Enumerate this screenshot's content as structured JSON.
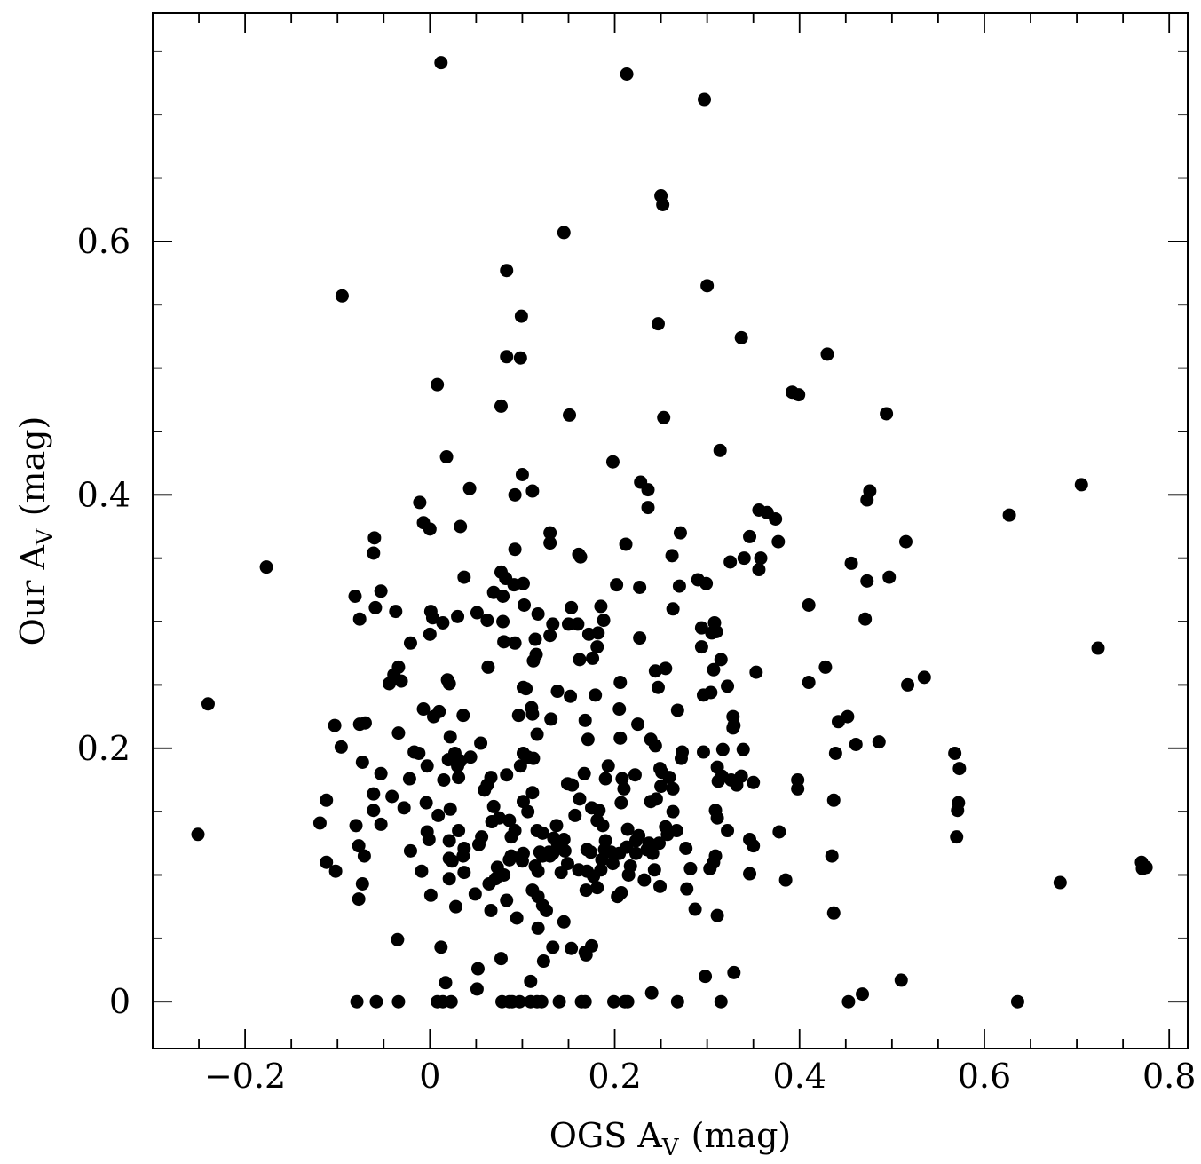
{
  "chart_data": {
    "type": "scatter",
    "xlabel": "OGS A",
    "xlabel_sub": "V",
    "xlabel_unit": "(mag)",
    "ylabel": "Our A",
    "ylabel_sub": "V",
    "ylabel_unit": "(mag)",
    "xlim": [
      -0.3,
      0.82
    ],
    "ylim": [
      -0.037,
      0.78
    ],
    "grid": false,
    "colors": {
      "marker": "#000000",
      "frame": "#000000"
    },
    "x_major_ticks": [
      -0.2,
      0,
      0.2,
      0.4,
      0.6,
      0.8
    ],
    "x_tick_labels": [
      "−0.2",
      "0",
      "0.2",
      "0.4",
      "0.6",
      "0.8"
    ],
    "y_major_ticks": [
      0,
      0.2,
      0.4,
      0.6
    ],
    "y_tick_labels": [
      "0",
      "0.2",
      "0.4",
      "0.6"
    ],
    "x_minor_step": 0.05,
    "y_minor_step": 0.05,
    "points": [
      [
        0.012,
        0.741
      ],
      [
        0.213,
        0.732
      ],
      [
        0.297,
        0.712
      ],
      [
        0.25,
        0.636
      ],
      [
        0.252,
        0.629
      ],
      [
        0.145,
        0.607
      ],
      [
        0.083,
        0.577
      ],
      [
        0.3,
        0.565
      ],
      [
        -0.095,
        0.557
      ],
      [
        0.099,
        0.541
      ],
      [
        0.247,
        0.535
      ],
      [
        0.337,
        0.524
      ],
      [
        0.083,
        0.509
      ],
      [
        0.098,
        0.508
      ],
      [
        0.43,
        0.511
      ],
      [
        0.008,
        0.487
      ],
      [
        0.392,
        0.481
      ],
      [
        0.399,
        0.479
      ],
      [
        0.077,
        0.47
      ],
      [
        0.151,
        0.463
      ],
      [
        0.253,
        0.461
      ],
      [
        0.494,
        0.464
      ],
      [
        0.018,
        0.43
      ],
      [
        0.314,
        0.435
      ],
      [
        0.198,
        0.426
      ],
      [
        0.1,
        0.416
      ],
      [
        0.228,
        0.41
      ],
      [
        0.236,
        0.404
      ],
      [
        0.043,
        0.405
      ],
      [
        0.111,
        0.403
      ],
      [
        0.092,
        0.4
      ],
      [
        0.476,
        0.403
      ],
      [
        0.473,
        0.396
      ],
      [
        0.705,
        0.408
      ],
      [
        -0.011,
        0.394
      ],
      [
        0.236,
        0.39
      ],
      [
        0.356,
        0.388
      ],
      [
        0.365,
        0.386
      ],
      [
        0.374,
        0.381
      ],
      [
        0.627,
        0.384
      ],
      [
        -0.007,
        0.378
      ],
      [
        0.0,
        0.373
      ],
      [
        0.033,
        0.375
      ],
      [
        0.13,
        0.37
      ],
      [
        0.271,
        0.37
      ],
      [
        -0.06,
        0.366
      ],
      [
        0.13,
        0.362
      ],
      [
        0.212,
        0.361
      ],
      [
        0.346,
        0.367
      ],
      [
        0.377,
        0.363
      ],
      [
        0.515,
        0.363
      ],
      [
        -0.061,
        0.354
      ],
      [
        0.092,
        0.357
      ],
      [
        0.161,
        0.353
      ],
      [
        0.163,
        0.351
      ],
      [
        0.262,
        0.352
      ],
      [
        0.34,
        0.35
      ],
      [
        0.325,
        0.347
      ],
      [
        0.358,
        0.35
      ],
      [
        0.356,
        0.341
      ],
      [
        0.456,
        0.346
      ],
      [
        -0.177,
        0.343
      ],
      [
        0.037,
        0.335
      ],
      [
        0.077,
        0.339
      ],
      [
        0.082,
        0.334
      ],
      [
        0.091,
        0.329
      ],
      [
        0.101,
        0.33
      ],
      [
        0.29,
        0.333
      ],
      [
        0.299,
        0.33
      ],
      [
        0.202,
        0.329
      ],
      [
        0.227,
        0.327
      ],
      [
        0.27,
        0.328
      ],
      [
        0.473,
        0.332
      ],
      [
        0.497,
        0.335
      ],
      [
        -0.081,
        0.32
      ],
      [
        -0.053,
        0.324
      ],
      [
        0.069,
        0.323
      ],
      [
        0.079,
        0.32
      ],
      [
        0.102,
        0.313
      ],
      [
        -0.059,
        0.311
      ],
      [
        -0.037,
        0.308
      ],
      [
        0.001,
        0.308
      ],
      [
        0.153,
        0.311
      ],
      [
        0.185,
        0.312
      ],
      [
        0.263,
        0.31
      ],
      [
        0.41,
        0.313
      ],
      [
        -0.076,
        0.302
      ],
      [
        0.003,
        0.303
      ],
      [
        0.014,
        0.299
      ],
      [
        0.03,
        0.304
      ],
      [
        0.051,
        0.307
      ],
      [
        0.079,
        0.3
      ],
      [
        0.062,
        0.301
      ],
      [
        0.117,
        0.306
      ],
      [
        0.133,
        0.298
      ],
      [
        0.15,
        0.298
      ],
      [
        0.16,
        0.298
      ],
      [
        0.188,
        0.301
      ],
      [
        0.308,
        0.299
      ],
      [
        0.471,
        0.302
      ],
      [
        0.0,
        0.29
      ],
      [
        -0.021,
        0.283
      ],
      [
        0.08,
        0.284
      ],
      [
        0.092,
        0.283
      ],
      [
        0.114,
        0.286
      ],
      [
        0.13,
        0.289
      ],
      [
        0.172,
        0.29
      ],
      [
        0.182,
        0.291
      ],
      [
        0.227,
        0.287
      ],
      [
        0.294,
        0.295
      ],
      [
        0.305,
        0.291
      ],
      [
        0.31,
        0.292
      ],
      [
        0.181,
        0.28
      ],
      [
        0.294,
        0.28
      ],
      [
        0.723,
        0.279
      ],
      [
        -0.034,
        0.264
      ],
      [
        0.063,
        0.264
      ],
      [
        0.112,
        0.269
      ],
      [
        0.115,
        0.274
      ],
      [
        0.162,
        0.27
      ],
      [
        0.176,
        0.271
      ],
      [
        0.315,
        0.27
      ],
      [
        0.244,
        0.261
      ],
      [
        0.255,
        0.263
      ],
      [
        0.307,
        0.262
      ],
      [
        0.353,
        0.26
      ],
      [
        0.428,
        0.264
      ],
      [
        -0.039,
        0.258
      ],
      [
        -0.031,
        0.253
      ],
      [
        -0.044,
        0.251
      ],
      [
        0.019,
        0.254
      ],
      [
        0.021,
        0.251
      ],
      [
        0.101,
        0.248
      ],
      [
        0.104,
        0.247
      ],
      [
        0.138,
        0.245
      ],
      [
        0.152,
        0.241
      ],
      [
        0.179,
        0.242
      ],
      [
        0.206,
        0.252
      ],
      [
        0.247,
        0.248
      ],
      [
        0.322,
        0.249
      ],
      [
        0.41,
        0.252
      ],
      [
        0.517,
        0.25
      ],
      [
        0.535,
        0.256
      ],
      [
        0.11,
        0.232
      ],
      [
        -0.24,
        0.235
      ],
      [
        -0.007,
        0.231
      ],
      [
        0.004,
        0.225
      ],
      [
        0.01,
        0.229
      ],
      [
        0.036,
        0.226
      ],
      [
        0.096,
        0.226
      ],
      [
        0.111,
        0.227
      ],
      [
        0.131,
        0.223
      ],
      [
        0.168,
        0.222
      ],
      [
        0.205,
        0.231
      ],
      [
        0.225,
        0.219
      ],
      [
        0.268,
        0.23
      ],
      [
        0.296,
        0.242
      ],
      [
        0.304,
        0.244
      ],
      [
        0.328,
        0.225
      ],
      [
        0.329,
        0.218
      ],
      [
        0.442,
        0.221
      ],
      [
        0.452,
        0.225
      ],
      [
        -0.103,
        0.218
      ],
      [
        -0.076,
        0.219
      ],
      [
        -0.07,
        0.22
      ],
      [
        -0.034,
        0.212
      ],
      [
        0.022,
        0.209
      ],
      [
        0.055,
        0.204
      ],
      [
        0.116,
        0.211
      ],
      [
        0.171,
        0.207
      ],
      [
        0.206,
        0.208
      ],
      [
        0.239,
        0.207
      ],
      [
        0.244,
        0.202
      ],
      [
        0.328,
        0.216
      ],
      [
        0.461,
        0.203
      ],
      [
        0.486,
        0.205
      ],
      [
        -0.096,
        0.201
      ],
      [
        -0.017,
        0.197
      ],
      [
        -0.012,
        0.196
      ],
      [
        0.027,
        0.196
      ],
      [
        0.033,
        0.19
      ],
      [
        0.044,
        0.193
      ],
      [
        0.101,
        0.196
      ],
      [
        0.106,
        0.193
      ],
      [
        0.112,
        0.192
      ],
      [
        0.273,
        0.197
      ],
      [
        0.296,
        0.197
      ],
      [
        0.317,
        0.199
      ],
      [
        0.339,
        0.199
      ],
      [
        0.439,
        0.196
      ],
      [
        0.568,
        0.196
      ],
      [
        -0.073,
        0.189
      ],
      [
        -0.003,
        0.186
      ],
      [
        0.02,
        0.191
      ],
      [
        0.03,
        0.186
      ],
      [
        0.098,
        0.186
      ],
      [
        0.193,
        0.186
      ],
      [
        0.249,
        0.184
      ],
      [
        0.272,
        0.192
      ],
      [
        0.311,
        0.185
      ],
      [
        0.573,
        0.184
      ],
      [
        -0.053,
        0.18
      ],
      [
        -0.022,
        0.176
      ],
      [
        0.015,
        0.175
      ],
      [
        0.031,
        0.177
      ],
      [
        0.083,
        0.179
      ],
      [
        0.149,
        0.172
      ],
      [
        0.167,
        0.18
      ],
      [
        0.19,
        0.176
      ],
      [
        0.208,
        0.176
      ],
      [
        0.222,
        0.179
      ],
      [
        0.251,
        0.181
      ],
      [
        0.259,
        0.177
      ],
      [
        0.316,
        0.178
      ],
      [
        0.326,
        0.175
      ],
      [
        0.337,
        0.178
      ],
      [
        0.35,
        0.173
      ],
      [
        0.398,
        0.175
      ],
      [
        -0.112,
        0.159
      ],
      [
        -0.061,
        0.164
      ],
      [
        -0.041,
        0.162
      ],
      [
        0.062,
        0.171
      ],
      [
        0.066,
        0.177
      ],
      [
        0.111,
        0.165
      ],
      [
        0.154,
        0.171
      ],
      [
        0.21,
        0.168
      ],
      [
        0.25,
        0.17
      ],
      [
        0.263,
        0.168
      ],
      [
        0.312,
        0.174
      ],
      [
        0.332,
        0.171
      ],
      [
        0.398,
        0.168
      ],
      [
        -0.061,
        0.151
      ],
      [
        -0.028,
        0.153
      ],
      [
        -0.004,
        0.157
      ],
      [
        0.022,
        0.152
      ],
      [
        0.059,
        0.167
      ],
      [
        0.069,
        0.154
      ],
      [
        0.075,
        0.145
      ],
      [
        0.101,
        0.158
      ],
      [
        0.106,
        0.15
      ],
      [
        0.162,
        0.16
      ],
      [
        0.175,
        0.153
      ],
      [
        0.183,
        0.151
      ],
      [
        0.207,
        0.157
      ],
      [
        0.239,
        0.158
      ],
      [
        0.245,
        0.16
      ],
      [
        0.263,
        0.15
      ],
      [
        0.309,
        0.151
      ],
      [
        0.437,
        0.159
      ],
      [
        0.572,
        0.157
      ],
      [
        0.571,
        0.151
      ],
      [
        -0.119,
        0.141
      ],
      [
        -0.08,
        0.139
      ],
      [
        -0.053,
        0.14
      ],
      [
        0.009,
        0.147
      ],
      [
        0.031,
        0.135
      ],
      [
        0.067,
        0.142
      ],
      [
        0.086,
        0.143
      ],
      [
        0.092,
        0.135
      ],
      [
        0.116,
        0.135
      ],
      [
        0.137,
        0.139
      ],
      [
        0.157,
        0.147
      ],
      [
        0.181,
        0.143
      ],
      [
        0.187,
        0.139
      ],
      [
        0.214,
        0.136
      ],
      [
        0.255,
        0.138
      ],
      [
        0.267,
        0.135
      ],
      [
        0.311,
        0.145
      ],
      [
        0.322,
        0.135
      ],
      [
        0.378,
        0.134
      ],
      [
        -0.251,
        0.132
      ],
      [
        -0.003,
        0.134
      ],
      [
        0.056,
        0.13
      ],
      [
        0.088,
        0.13
      ],
      [
        0.122,
        0.133
      ],
      [
        0.134,
        0.129
      ],
      [
        0.145,
        0.128
      ],
      [
        0.19,
        0.127
      ],
      [
        0.226,
        0.131
      ],
      [
        0.257,
        0.132
      ],
      [
        0.346,
        0.128
      ],
      [
        0.57,
        0.13
      ],
      [
        -0.077,
        0.123
      ],
      [
        -0.001,
        0.128
      ],
      [
        0.021,
        0.127
      ],
      [
        0.037,
        0.121
      ],
      [
        0.053,
        0.124
      ],
      [
        0.119,
        0.118
      ],
      [
        0.133,
        0.117
      ],
      [
        0.138,
        0.125
      ],
      [
        0.17,
        0.12
      ],
      [
        0.189,
        0.12
      ],
      [
        0.196,
        0.118
      ],
      [
        0.213,
        0.122
      ],
      [
        0.223,
        0.127
      ],
      [
        0.237,
        0.125
      ],
      [
        0.248,
        0.125
      ],
      [
        0.277,
        0.121
      ],
      [
        0.309,
        0.115
      ],
      [
        0.35,
        0.123
      ],
      [
        -0.071,
        0.115
      ],
      [
        -0.021,
        0.119
      ],
      [
        0.021,
        0.113
      ],
      [
        0.036,
        0.115
      ],
      [
        0.088,
        0.115
      ],
      [
        0.101,
        0.117
      ],
      [
        0.122,
        0.115
      ],
      [
        0.129,
        0.118
      ],
      [
        0.146,
        0.119
      ],
      [
        0.174,
        0.118
      ],
      [
        0.186,
        0.112
      ],
      [
        0.205,
        0.117
      ],
      [
        0.223,
        0.117
      ],
      [
        0.235,
        0.12
      ],
      [
        0.241,
        0.117
      ],
      [
        0.435,
        0.115
      ],
      [
        -0.112,
        0.11
      ],
      [
        0.024,
        0.111
      ],
      [
        0.037,
        0.102
      ],
      [
        0.073,
        0.106
      ],
      [
        0.086,
        0.112
      ],
      [
        0.1,
        0.111
      ],
      [
        0.114,
        0.107
      ],
      [
        0.13,
        0.115
      ],
      [
        0.149,
        0.109
      ],
      [
        0.161,
        0.104
      ],
      [
        0.185,
        0.104
      ],
      [
        0.198,
        0.109
      ],
      [
        0.217,
        0.107
      ],
      [
        0.282,
        0.105
      ],
      [
        0.303,
        0.105
      ],
      [
        0.307,
        0.11
      ],
      [
        0.346,
        0.101
      ],
      [
        0.77,
        0.11
      ],
      [
        0.771,
        0.105
      ],
      [
        0.775,
        0.106
      ],
      [
        -0.102,
        0.103
      ],
      [
        -0.009,
        0.103
      ],
      [
        0.021,
        0.097
      ],
      [
        0.071,
        0.097
      ],
      [
        0.08,
        0.1
      ],
      [
        0.117,
        0.103
      ],
      [
        0.142,
        0.102
      ],
      [
        0.17,
        0.103
      ],
      [
        0.177,
        0.099
      ],
      [
        0.215,
        0.1
      ],
      [
        0.243,
        0.104
      ],
      [
        0.385,
        0.096
      ],
      [
        0.682,
        0.094
      ],
      [
        -0.073,
        0.093
      ],
      [
        0.064,
        0.093
      ],
      [
        0.111,
        0.088
      ],
      [
        0.169,
        0.088
      ],
      [
        0.181,
        0.09
      ],
      [
        0.207,
        0.086
      ],
      [
        0.232,
        0.096
      ],
      [
        0.249,
        0.091
      ],
      [
        0.278,
        0.089
      ],
      [
        0.001,
        0.084
      ],
      [
        0.049,
        0.085
      ],
      [
        0.083,
        0.08
      ],
      [
        0.117,
        0.083
      ],
      [
        0.203,
        0.083
      ],
      [
        -0.077,
        0.081
      ],
      [
        0.028,
        0.075
      ],
      [
        0.066,
        0.072
      ],
      [
        0.094,
        0.066
      ],
      [
        0.122,
        0.076
      ],
      [
        0.126,
        0.072
      ],
      [
        0.287,
        0.073
      ],
      [
        0.311,
        0.068
      ],
      [
        0.437,
        0.07
      ],
      [
        0.117,
        0.058
      ],
      [
        0.145,
        0.063
      ],
      [
        0.153,
        0.042
      ],
      [
        -0.035,
        0.049
      ],
      [
        0.012,
        0.043
      ],
      [
        0.133,
        0.043
      ],
      [
        0.169,
        0.037
      ],
      [
        0.175,
        0.044
      ],
      [
        0.077,
        0.034
      ],
      [
        0.168,
        0.039
      ],
      [
        0.123,
        0.032
      ],
      [
        0.052,
        0.026
      ],
      [
        0.298,
        0.02
      ],
      [
        0.329,
        0.023
      ],
      [
        0.017,
        0.015
      ],
      [
        0.051,
        0.01
      ],
      [
        0.109,
        0.016
      ],
      [
        0.24,
        0.007
      ],
      [
        0.468,
        0.006
      ],
      [
        0.51,
        0.017
      ],
      [
        -0.079,
        0.0
      ],
      [
        -0.058,
        0.0
      ],
      [
        -0.034,
        0.0
      ],
      [
        0.008,
        0.0
      ],
      [
        0.014,
        0.0
      ],
      [
        0.023,
        0.0
      ],
      [
        0.078,
        0.0
      ],
      [
        0.086,
        0.0
      ],
      [
        0.089,
        0.0
      ],
      [
        0.097,
        0.0
      ],
      [
        0.109,
        0.0
      ],
      [
        0.116,
        0.0
      ],
      [
        0.121,
        0.0
      ],
      [
        0.14,
        0.0
      ],
      [
        0.164,
        0.0
      ],
      [
        0.168,
        0.0
      ],
      [
        0.199,
        0.0
      ],
      [
        0.211,
        0.0
      ],
      [
        0.214,
        0.0
      ],
      [
        0.268,
        0.0
      ],
      [
        0.315,
        0.0
      ],
      [
        0.453,
        0.0
      ],
      [
        0.636,
        0.0
      ]
    ]
  }
}
